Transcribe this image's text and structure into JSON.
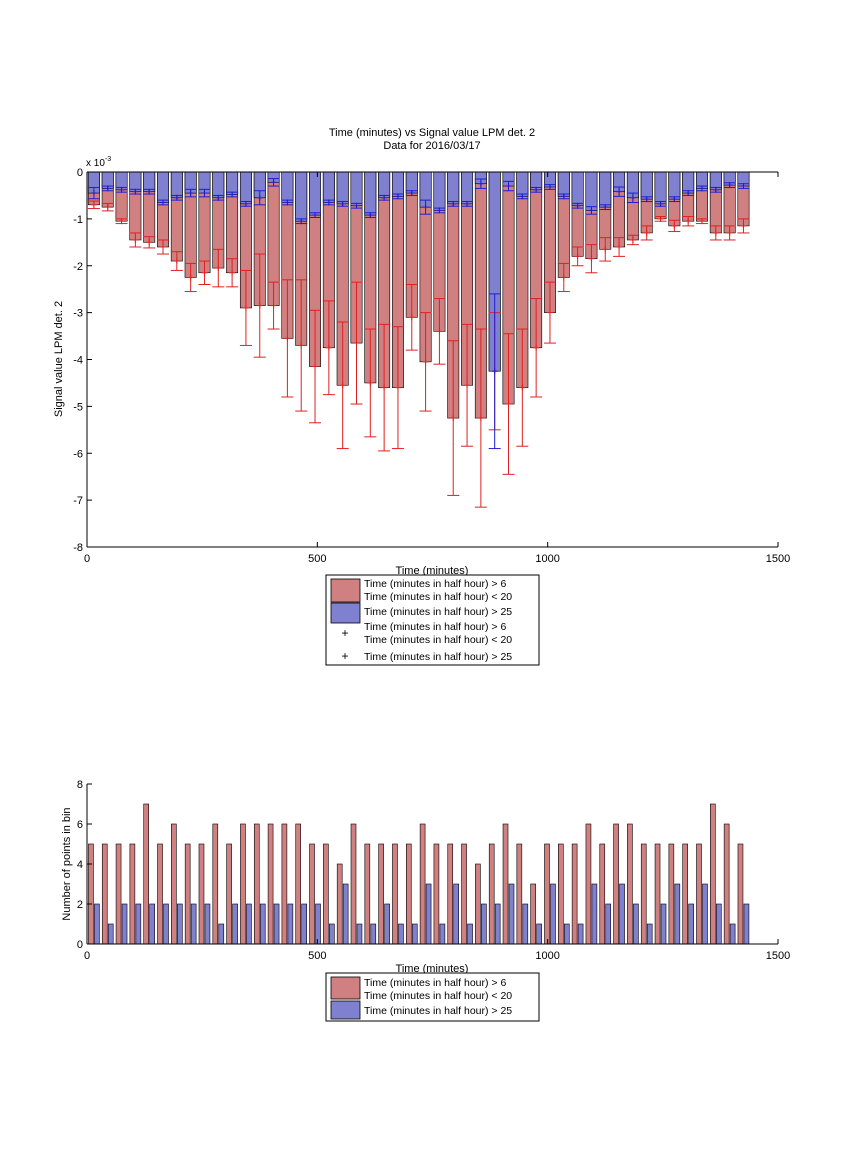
{
  "chart_data": [
    {
      "type": "bar",
      "title": "Time (minutes) vs Signal value LPM det. 2",
      "subtitle": "Data for 2016/03/17",
      "xlabel": "Time (minutes)",
      "ylabel": "Signal value LPM det. 2",
      "y_exponent_label": "x 10",
      "y_exponent": "-3",
      "xlim": [
        0,
        1500
      ],
      "ylim": [
        -8,
        0
      ],
      "y_scale": 0.001,
      "xticks": [
        "0",
        "500",
        "1000",
        "1500"
      ],
      "yticks": [
        "0",
        "-1",
        "-2",
        "-3",
        "-4",
        "-5",
        "-6",
        "-7",
        "-8"
      ],
      "grid": false,
      "legend_position": "below",
      "legend": [
        "Time (minutes in half hour) > 6",
        "Time (minutes in half hour) < 20",
        "Time (minutes in half hour) > 25",
        "Time (minutes in half hour) > 6",
        "Time (minutes in half hour) < 20",
        "Time (minutes in half hour) > 25"
      ],
      "colors": {
        "red_bar": "#d08080",
        "blue_bar": "#8080d0",
        "red_marker": "#e02020",
        "blue_marker": "#1f1fd0"
      },
      "x": [
        15,
        45,
        75,
        105,
        135,
        165,
        195,
        225,
        255,
        285,
        315,
        345,
        375,
        405,
        435,
        465,
        495,
        525,
        555,
        585,
        615,
        645,
        675,
        705,
        735,
        765,
        795,
        825,
        855,
        885,
        915,
        945,
        975,
        1005,
        1035,
        1065,
        1095,
        1125,
        1155,
        1185,
        1215,
        1245,
        1275,
        1305,
        1335,
        1365,
        1395,
        1425
      ],
      "series": [
        {
          "name": "Time (minutes in half hour) > 6 / < 20",
          "values": [
            -0.7,
            -0.75,
            -1.05,
            -1.45,
            -1.5,
            -1.6,
            -1.9,
            -2.25,
            -2.15,
            -2.05,
            -2.15,
            -2.9,
            -2.85,
            -2.85,
            -3.55,
            -3.7,
            -4.15,
            -3.75,
            -4.55,
            -3.65,
            -4.5,
            -4.6,
            -4.6,
            -3.1,
            -4.05,
            -3.4,
            -5.25,
            -4.55,
            -5.25,
            -4.25,
            -4.95,
            -4.6,
            -3.75,
            -3.0,
            -2.25,
            -1.8,
            -1.85,
            -1.65,
            -1.6,
            -1.45,
            -1.3,
            -1.0,
            -1.15,
            -1.05,
            -1.05,
            -1.3,
            -1.3,
            -1.15
          ],
          "errors": [
            0.08,
            0.08,
            0.05,
            0.15,
            0.12,
            0.15,
            0.2,
            0.3,
            0.25,
            0.4,
            0.3,
            0.8,
            1.1,
            0.5,
            1.25,
            1.4,
            1.2,
            1.0,
            1.35,
            1.3,
            1.15,
            1.35,
            1.3,
            0.7,
            1.05,
            0.7,
            1.65,
            1.3,
            1.9,
            1.25,
            1.5,
            1.25,
            1.05,
            0.65,
            0.3,
            0.2,
            0.3,
            0.25,
            0.2,
            0.1,
            0.15,
            0.05,
            0.12,
            0.1,
            0.05,
            0.15,
            0.15,
            0.15
          ]
        },
        {
          "name": "Time (minutes in half hour) > 25",
          "values": [
            -0.45,
            -0.35,
            -0.38,
            -0.42,
            -0.42,
            -0.65,
            -0.55,
            -0.45,
            -0.45,
            -0.55,
            -0.48,
            -0.68,
            -0.55,
            -0.22,
            -0.65,
            -1.05,
            -0.92,
            -0.65,
            -0.68,
            -0.72,
            -0.92,
            -0.55,
            -0.52,
            -0.45,
            -0.75,
            -0.82,
            -0.68,
            -0.68,
            -0.25,
            -4.25,
            -0.3,
            -0.52,
            -0.38,
            -0.32,
            -0.52,
            -0.72,
            -0.82,
            -0.75,
            -0.42,
            -0.55,
            -0.58,
            -0.68,
            -0.58,
            -0.45,
            -0.35,
            -0.38,
            -0.28,
            -0.3
          ],
          "errors": [
            0.12,
            0.05,
            0.05,
            0.05,
            0.05,
            0.05,
            0.05,
            0.08,
            0.08,
            0.05,
            0.05,
            0.05,
            0.15,
            0.08,
            0.05,
            0.05,
            0.05,
            0.05,
            0.05,
            0.05,
            0.05,
            0.05,
            0.05,
            0.05,
            0.15,
            0.05,
            0.05,
            0.05,
            0.1,
            1.65,
            0.1,
            0.05,
            0.05,
            0.05,
            0.05,
            0.05,
            0.08,
            0.05,
            0.1,
            0.1,
            0.05,
            0.05,
            0.05,
            0.05,
            0.05,
            0.05,
            0.05,
            0.05
          ]
        }
      ]
    },
    {
      "type": "bar",
      "xlabel": "Time (minutes)",
      "ylabel": "Number of points in bin",
      "xlim": [
        0,
        1500
      ],
      "ylim": [
        0,
        8
      ],
      "xticks": [
        "0",
        "500",
        "1000",
        "1500"
      ],
      "yticks": [
        "0",
        "2",
        "4",
        "6",
        "8"
      ],
      "grid": false,
      "legend_position": "below",
      "legend": [
        "Time (minutes in half hour) > 6",
        "Time (minutes in half hour) < 20",
        "Time (minutes in half hour) > 25"
      ],
      "colors": {
        "red_bar": "#d08080",
        "blue_bar": "#8080d0"
      },
      "x": [
        15,
        45,
        75,
        105,
        135,
        165,
        195,
        225,
        255,
        285,
        315,
        345,
        375,
        405,
        435,
        465,
        495,
        525,
        555,
        585,
        615,
        645,
        675,
        705,
        735,
        765,
        795,
        825,
        855,
        885,
        915,
        945,
        975,
        1005,
        1035,
        1065,
        1095,
        1125,
        1155,
        1185,
        1215,
        1245,
        1275,
        1305,
        1335,
        1365,
        1395,
        1425
      ],
      "series": [
        {
          "name": "Time (minutes in half hour) > 6 / < 20",
          "values": [
            5,
            5,
            5,
            5,
            7,
            5,
            6,
            5,
            5,
            6,
            5,
            6,
            6,
            6,
            6,
            6,
            5,
            5,
            4,
            6,
            5,
            5,
            5,
            5,
            6,
            5,
            5,
            5,
            4,
            5,
            6,
            5,
            3,
            5,
            5,
            5,
            6,
            5,
            6,
            6,
            5,
            5,
            5,
            5,
            5,
            7,
            6,
            5
          ]
        },
        {
          "name": "Time (minutes in half hour) > 25",
          "values": [
            2,
            1,
            2,
            2,
            2,
            2,
            2,
            2,
            2,
            1,
            2,
            2,
            2,
            2,
            2,
            2,
            2,
            1,
            3,
            1,
            1,
            2,
            1,
            1,
            3,
            1,
            3,
            1,
            2,
            2,
            3,
            2,
            1,
            3,
            1,
            1,
            3,
            2,
            3,
            2,
            1,
            2,
            3,
            2,
            3,
            2,
            1,
            2
          ]
        }
      ]
    }
  ]
}
